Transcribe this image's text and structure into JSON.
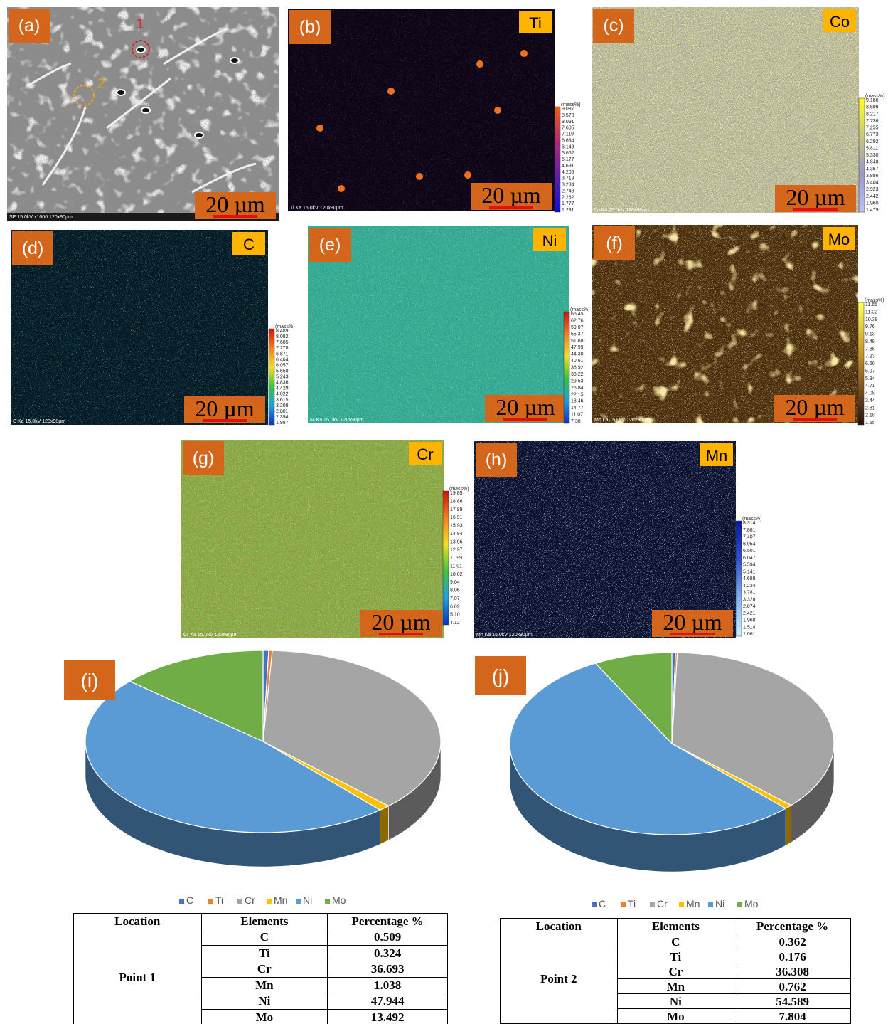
{
  "panels": [
    {
      "label": "(a)",
      "footer": "SE 15.0kV x1000 120x90µm",
      "scale_bar": "20 µm",
      "annotations": [
        "1",
        "2"
      ]
    },
    {
      "label": "(b)",
      "element": "Ti",
      "footer": "Ti Ka 15.0kV 120x90µm",
      "scale_bar": "20 µm",
      "colorbar": {
        "unit": "(mass%)",
        "ticks": [
          "9.087",
          "8.578",
          "8.091",
          "7.605",
          "7.119",
          "6.634",
          "6.148",
          "5.662",
          "5.177",
          "4.691",
          "4.205",
          "3.719",
          "3.234",
          "2.748",
          "2.262",
          "1.777",
          "1.291"
        ]
      }
    },
    {
      "label": "(c)",
      "element": "Co",
      "footer": "Co Ka 15.0kV 120x90µm",
      "scale_bar": "20 µm",
      "colorbar": {
        "unit": "(mass%)",
        "ticks": [
          "9.180",
          "8.699",
          "8.217",
          "7.736",
          "7.255",
          "6.773",
          "6.292",
          "5.811",
          "5.330",
          "4.848",
          "4.367",
          "3.886",
          "3.404",
          "2.923",
          "2.442",
          "1.960",
          "1.479"
        ]
      }
    },
    {
      "label": "(d)",
      "element": "C",
      "footer": "C Ka 15.0kV 120x90µm",
      "scale_bar": "20 µm",
      "colorbar": {
        "unit": "(mass%)",
        "ticks": [
          "8.489",
          "8.082",
          "7.685",
          "7.278",
          "6.871",
          "6.464",
          "6.057",
          "5.650",
          "5.243",
          "4.836",
          "4.429",
          "4.022",
          "3.615",
          "3.208",
          "2.801",
          "2.394",
          "1.987"
        ]
      }
    },
    {
      "label": "(e)",
      "element": "Ni",
      "footer": "Ni Ka 15.0kV 120x90µm",
      "scale_bar": "20 µm",
      "colorbar": {
        "unit": "(mass%)",
        "ticks": [
          "66.45",
          "62.76",
          "59.07",
          "55.37",
          "51.68",
          "47.99",
          "44.30",
          "40.61",
          "36.92",
          "33.22",
          "29.53",
          "25.84",
          "22.15",
          "18.46",
          "14.77",
          "11.07",
          "7.38"
        ]
      }
    },
    {
      "label": "(f)",
      "element": "Mo",
      "footer": "Mo La 15.0kV 120x90µm",
      "scale_bar": "20 µm",
      "colorbar": {
        "unit": "(mass%)",
        "ticks": [
          "11.65",
          "11.02",
          "10.39",
          "9.76",
          "9.13",
          "8.49",
          "7.86",
          "7.23",
          "6.60",
          "5.97",
          "5.34",
          "4.71",
          "4.08",
          "3.44",
          "2.81",
          "2.18",
          "1.55"
        ]
      }
    },
    {
      "label": "(g)",
      "element": "Cr",
      "footer": "Cr Ka 15.0kV 120x90µm",
      "scale_bar": "20 µm",
      "colorbar": {
        "unit": "(mass%)",
        "ticks": [
          "19.85",
          "18.86",
          "17.89",
          "16.91",
          "15.93",
          "14.94",
          "13.96",
          "12.97",
          "11.99",
          "11.01",
          "10.02",
          "9.04",
          "8.06",
          "7.07",
          "6.09",
          "5.10",
          "4.12"
        ]
      }
    },
    {
      "label": "(h)",
      "element": "Mn",
      "footer": "Mn Ka 15.0kV 120x90µm",
      "scale_bar": "20 µm",
      "colorbar": {
        "unit": "(mass%)",
        "ticks": [
          "8.314",
          "7.861",
          "7.407",
          "6.954",
          "6.501",
          "6.047",
          "5.594",
          "5.141",
          "4.688",
          "4.234",
          "3.781",
          "3.328",
          "2.874",
          "2.421",
          "1.968",
          "1.514",
          "1.061"
        ]
      }
    }
  ],
  "chart_data": [
    {
      "type": "pie",
      "label": "(i)",
      "categories": [
        "C",
        "Ti",
        "Cr",
        "Mn",
        "Ni",
        "Mo"
      ],
      "values": [
        0.509,
        0.324,
        36.693,
        1.038,
        47.944,
        13.492
      ],
      "colors": [
        "#4472c4",
        "#ed7d31",
        "#a5a5a5",
        "#ffc000",
        "#5b9bd5",
        "#70ad47"
      ]
    },
    {
      "type": "pie",
      "label": "(j)",
      "categories": [
        "C",
        "Ti",
        "Cr",
        "Mn",
        "Ni",
        "Mo"
      ],
      "values": [
        0.362,
        0.176,
        36.308,
        0.762,
        54.589,
        7.804
      ],
      "colors": [
        "#4472c4",
        "#ed7d31",
        "#a5a5a5",
        "#ffc000",
        "#5b9bd5",
        "#70ad47"
      ]
    }
  ],
  "tables": [
    {
      "headers": [
        "Location",
        "Elements",
        "Percentage %"
      ],
      "location": "Point 1"
    },
    {
      "headers": [
        "Location",
        "Elements",
        "Percentage %"
      ],
      "location": "Point 2"
    }
  ]
}
